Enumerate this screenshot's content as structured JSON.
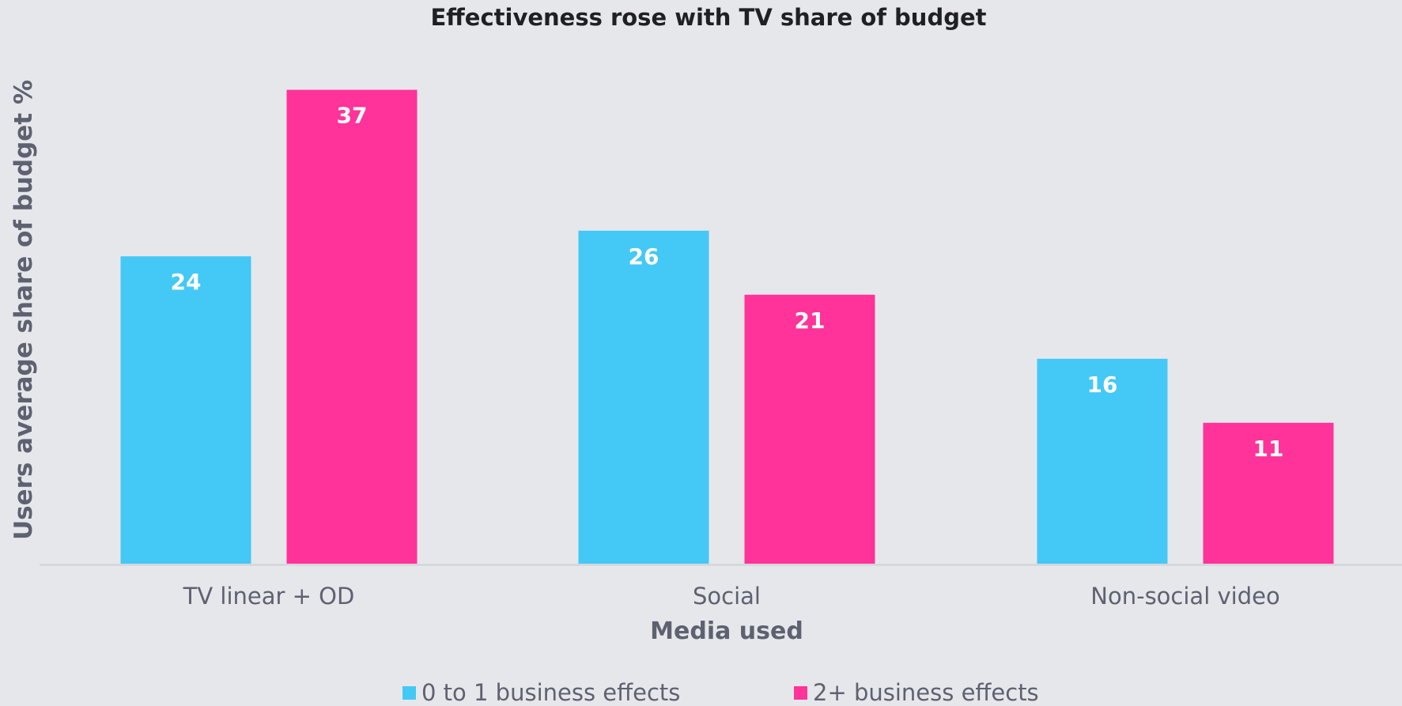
{
  "chart_data": {
    "type": "bar",
    "title": "Effectiveness rose with TV share of budget",
    "xlabel": "Media used",
    "ylabel": "Users average share of budget %",
    "categories": [
      "TV linear + OD",
      "Social",
      "Non-social video"
    ],
    "series": [
      {
        "name": "0 to 1 business effects",
        "values": [
          24,
          26,
          16
        ],
        "color": "#44c8f5"
      },
      {
        "name": "2+ business effects",
        "values": [
          37,
          21,
          11
        ],
        "color": "#ff3399"
      }
    ],
    "ylim": [
      0,
      40
    ],
    "grid": false,
    "legend_position": "bottom"
  }
}
